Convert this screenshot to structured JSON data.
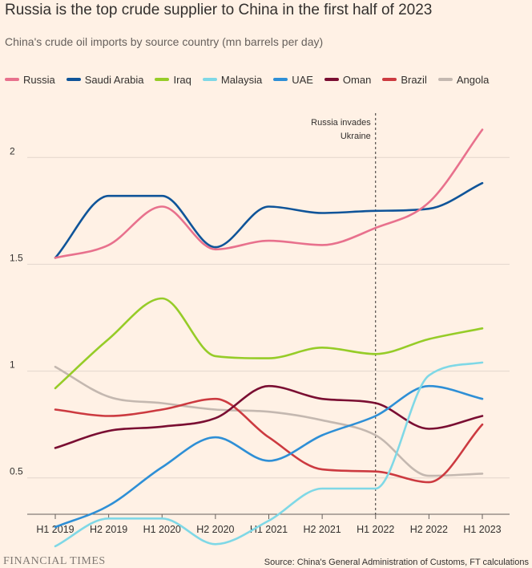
{
  "chart_data": {
    "type": "line",
    "title": "Russia is the top crude supplier to China in the first half of 2023",
    "subtitle": "China's crude oil imports by source country (mn barrels per day)",
    "xlabel": "",
    "ylabel": "",
    "ylim": [
      0.33,
      2.2
    ],
    "yticks": [
      {
        "value": 2,
        "label": "2"
      },
      {
        "value": 1.5,
        "label": "1.5"
      },
      {
        "value": 1,
        "label": "1"
      },
      {
        "value": 0.5,
        "label": "0.5"
      }
    ],
    "categories": [
      "H1 2019",
      "H2 2019",
      "H1 2020",
      "H2 2020",
      "H1 2021",
      "H2 2021",
      "H1 2022",
      "H2 2022",
      "H1 2023"
    ],
    "series": [
      {
        "name": "Russia",
        "color": "#e8718d",
        "values": [
          1.53,
          1.59,
          1.77,
          1.57,
          1.61,
          1.59,
          1.67,
          1.79,
          2.13
        ]
      },
      {
        "name": "Saudi Arabia",
        "color": "#0f5499",
        "values": [
          1.53,
          1.82,
          1.82,
          1.58,
          1.77,
          1.74,
          1.75,
          1.76,
          1.88
        ]
      },
      {
        "name": "Iraq",
        "color": "#96cc28",
        "values": [
          0.92,
          1.15,
          1.34,
          1.07,
          1.06,
          1.11,
          1.08,
          1.15,
          1.2
        ]
      },
      {
        "name": "Malaysia",
        "color": "#7fd8e6",
        "values": [
          0.18,
          0.31,
          0.31,
          0.19,
          0.3,
          0.45,
          0.45,
          0.98,
          1.04
        ]
      },
      {
        "name": "UAE",
        "color": "#2e8fd6",
        "values": [
          0.27,
          0.37,
          0.55,
          0.69,
          0.58,
          0.7,
          0.79,
          0.93,
          0.87
        ]
      },
      {
        "name": "Oman",
        "color": "#7a0e32",
        "values": [
          0.64,
          0.72,
          0.74,
          0.78,
          0.93,
          0.87,
          0.85,
          0.73,
          0.79
        ]
      },
      {
        "name": "Brazil",
        "color": "#cc3a40",
        "values": [
          0.82,
          0.79,
          0.82,
          0.87,
          0.69,
          0.54,
          0.53,
          0.48,
          0.75
        ]
      },
      {
        "name": "Angola",
        "color": "#c4b8b0",
        "values": [
          1.02,
          0.88,
          0.85,
          0.82,
          0.81,
          0.77,
          0.7,
          0.51,
          0.52
        ]
      }
    ],
    "annotation": {
      "text_line1": "Russia invades",
      "text_line2": "Ukraine",
      "x_category": "H1 2022"
    },
    "legend_position": "top",
    "grid": true
  },
  "footer": {
    "publisher": "FINANCIAL TIMES",
    "source": "Source: China's General Administration of Customs, FT calculations"
  },
  "colors": {
    "background": "#fff1e5",
    "gridline": "#e3d6cc",
    "axis": "#66605c",
    "text": "#33302e"
  }
}
